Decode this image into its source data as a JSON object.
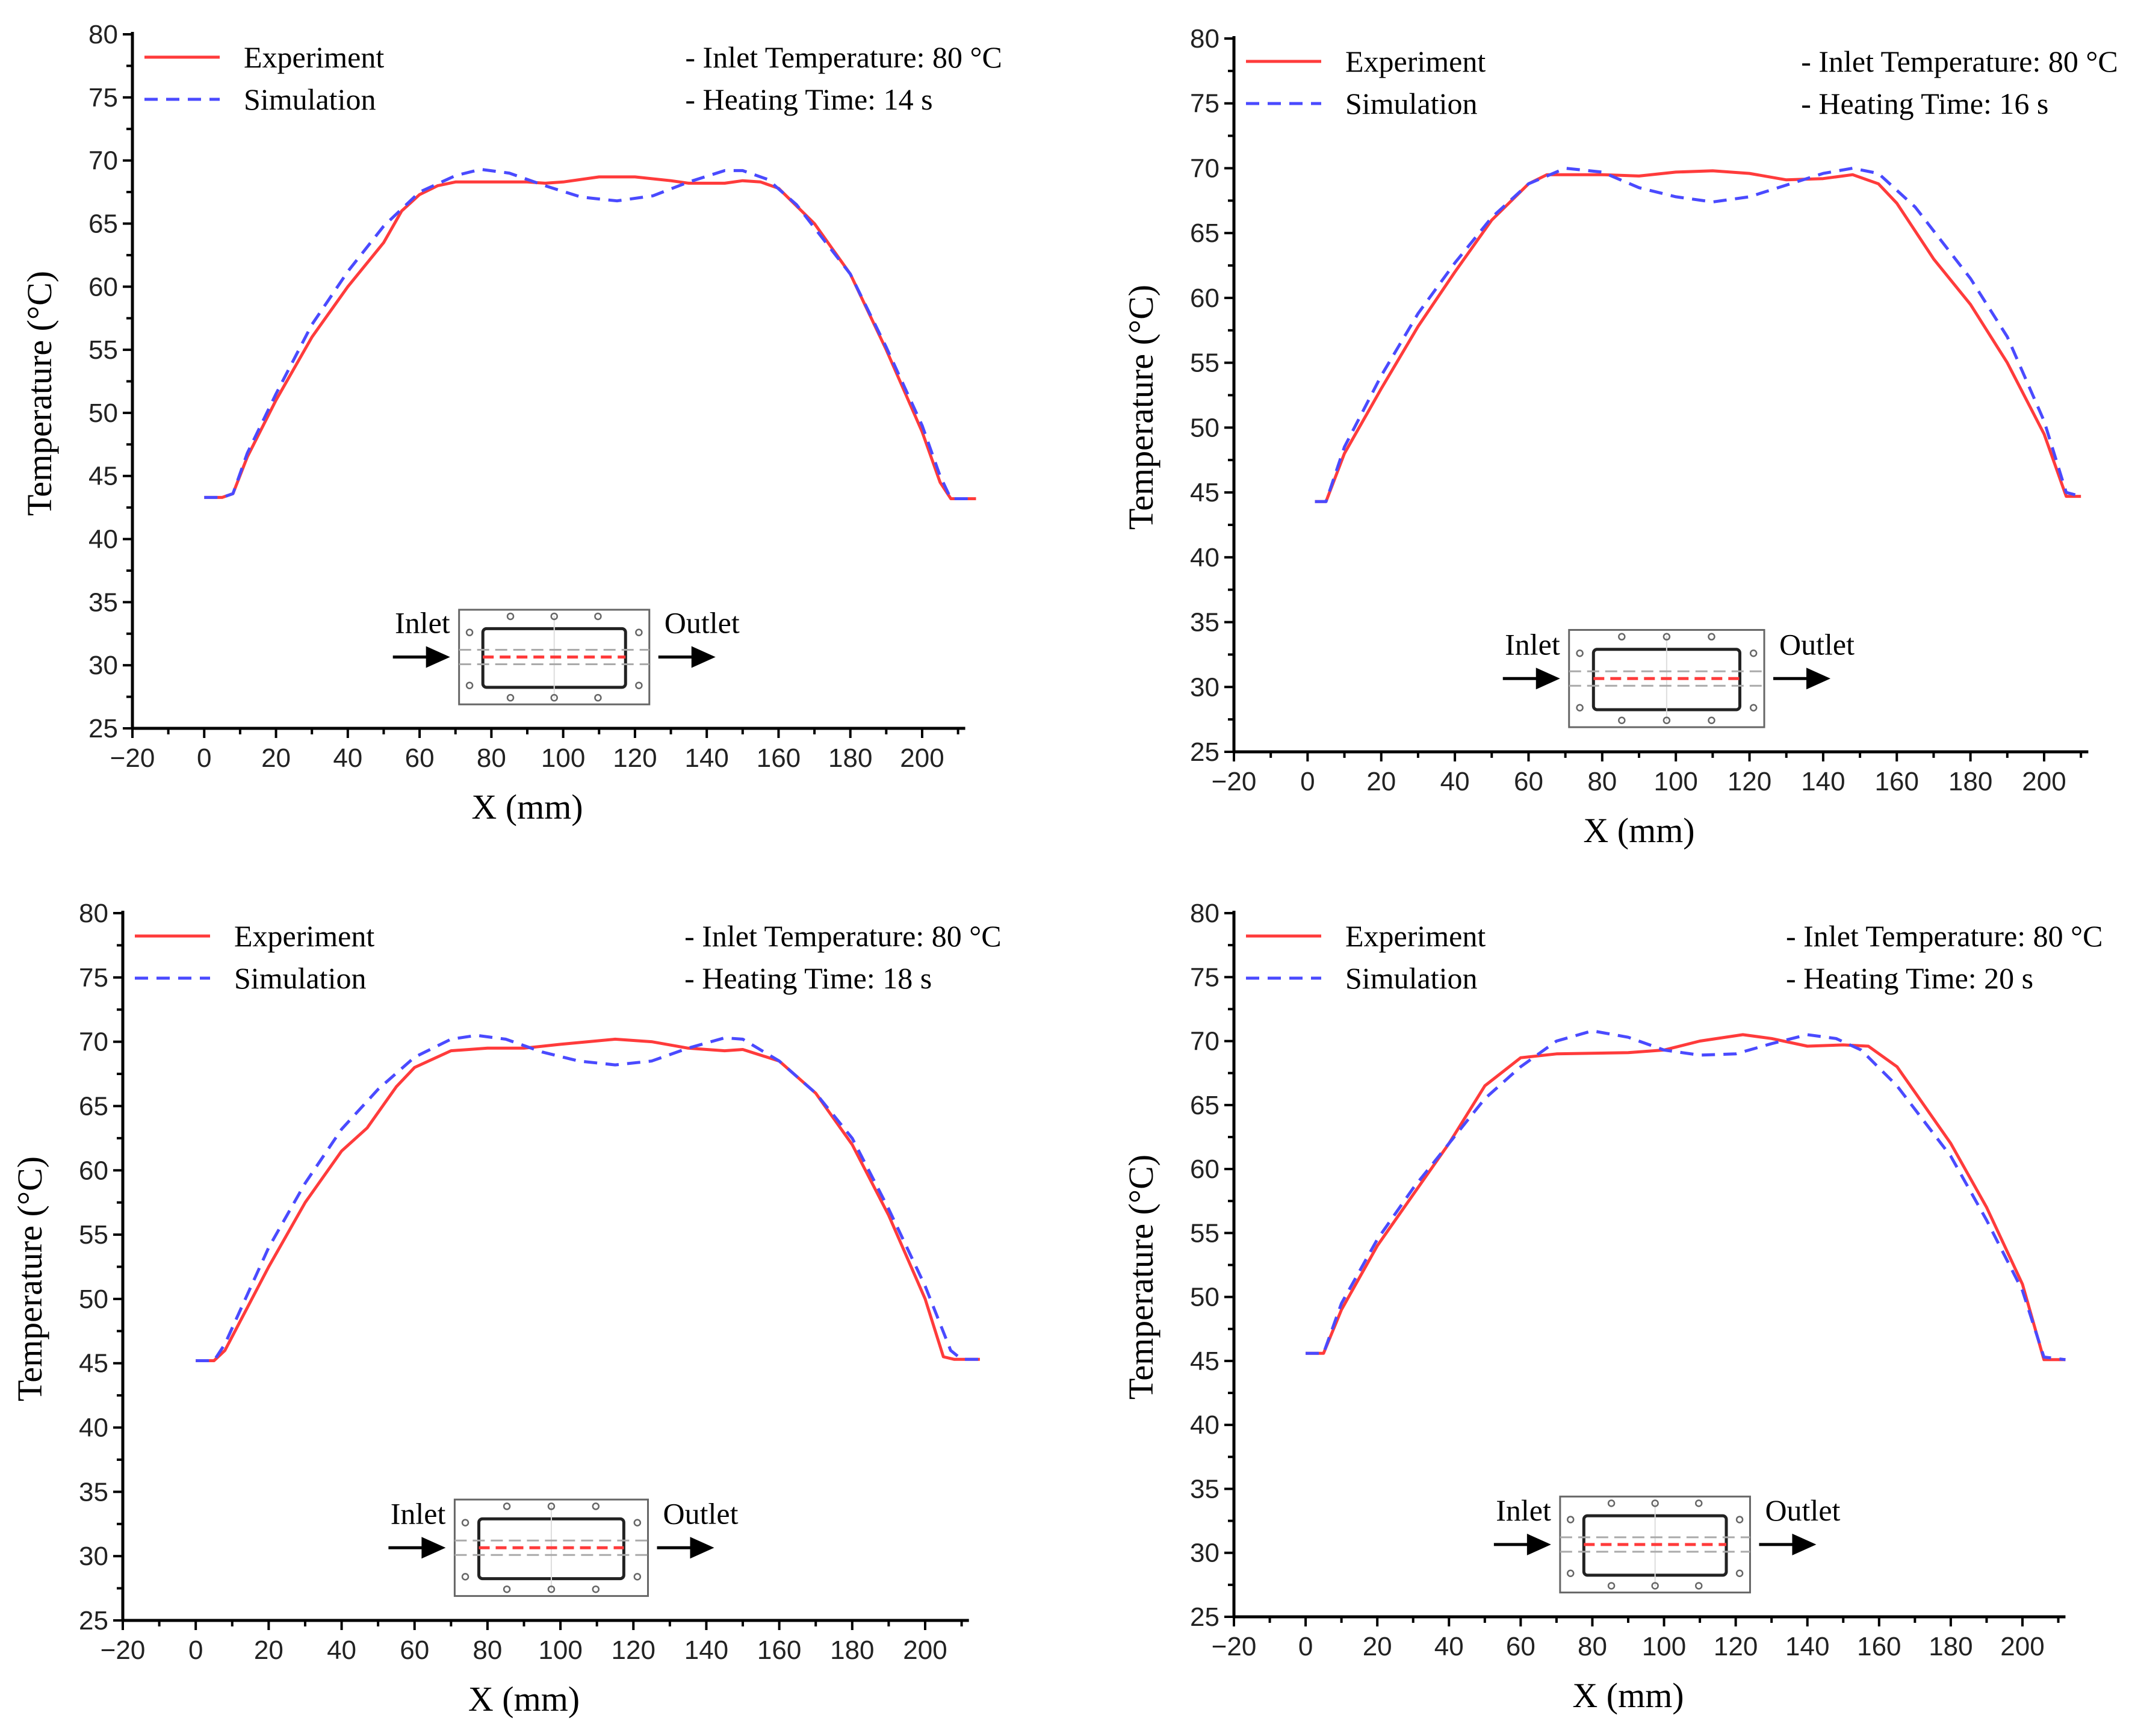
{
  "chart_data": [
    {
      "type": "line",
      "xlabel": "X (mm)",
      "ylabel": "Temperature (°C)",
      "xlim": [
        -20,
        212
      ],
      "ylim": [
        25,
        80
      ],
      "xticks": [
        -20,
        0,
        20,
        40,
        60,
        80,
        100,
        120,
        140,
        160,
        180,
        200
      ],
      "yticks": [
        25,
        30,
        35,
        40,
        45,
        50,
        55,
        60,
        65,
        70,
        75,
        80
      ],
      "legend": "top-left",
      "annotations": [
        "- Inlet Temperature: 80 °C",
        "- Heating Time: 14 s"
      ],
      "inset": {
        "inlet": "Inlet",
        "outlet": "Outlet"
      },
      "series": [
        {
          "name": "Experiment",
          "color": "#ff3b3b",
          "style": "solid",
          "points": [
            [
              0,
              43.3
            ],
            [
              5,
              43.3
            ],
            [
              8,
              43.6
            ],
            [
              12,
              46.5
            ],
            [
              20,
              51
            ],
            [
              30,
              56
            ],
            [
              40,
              60
            ],
            [
              50,
              63.5
            ],
            [
              55,
              66
            ],
            [
              60,
              67.3
            ],
            [
              65,
              68
            ],
            [
              70,
              68.3
            ],
            [
              80,
              68.3
            ],
            [
              90,
              68.3
            ],
            [
              95,
              68.2
            ],
            [
              100,
              68.3
            ],
            [
              110,
              68.7
            ],
            [
              120,
              68.7
            ],
            [
              130,
              68.4
            ],
            [
              135,
              68.2
            ],
            [
              145,
              68.2
            ],
            [
              150,
              68.4
            ],
            [
              155,
              68.3
            ],
            [
              160,
              67.8
            ],
            [
              170,
              65
            ],
            [
              180,
              61
            ],
            [
              190,
              55
            ],
            [
              200,
              48.5
            ],
            [
              205,
              44.5
            ],
            [
              208,
              43.2
            ],
            [
              215,
              43.2
            ]
          ]
        },
        {
          "name": "Simulation",
          "color": "#4a4aff",
          "style": "dashed",
          "points": [
            [
              0,
              43.3
            ],
            [
              5,
              43.3
            ],
            [
              8,
              43.6
            ],
            [
              12,
              46.8
            ],
            [
              20,
              51.5
            ],
            [
              30,
              57
            ],
            [
              40,
              61.2
            ],
            [
              50,
              64.8
            ],
            [
              60,
              67.5
            ],
            [
              70,
              68.8
            ],
            [
              77,
              69.3
            ],
            [
              85,
              69
            ],
            [
              95,
              68
            ],
            [
              105,
              67.1
            ],
            [
              115,
              66.8
            ],
            [
              125,
              67.2
            ],
            [
              135,
              68.3
            ],
            [
              145,
              69.2
            ],
            [
              150,
              69.2
            ],
            [
              157,
              68.5
            ],
            [
              165,
              66.5
            ],
            [
              180,
              61
            ],
            [
              190,
              55.2
            ],
            [
              200,
              49
            ],
            [
              205,
              45
            ],
            [
              208,
              43.2
            ],
            [
              215,
              43.2
            ]
          ]
        }
      ]
    },
    {
      "type": "line",
      "xlabel": "X (mm)",
      "ylabel": "Temperature (°C)",
      "xlim": [
        -20,
        212
      ],
      "ylim": [
        25,
        80
      ],
      "xticks": [
        -20,
        0,
        20,
        40,
        60,
        80,
        100,
        120,
        140,
        160,
        180,
        200
      ],
      "yticks": [
        25,
        30,
        35,
        40,
        45,
        50,
        55,
        60,
        65,
        70,
        75,
        80
      ],
      "legend": "top-left",
      "annotations": [
        "- Inlet Temperature: 80 °C",
        "- Heating Time: 16 s"
      ],
      "inset": {
        "inlet": "Inlet",
        "outlet": "Outlet"
      },
      "series": [
        {
          "name": "Experiment",
          "color": "#ff3b3b",
          "style": "solid",
          "points": [
            [
              2,
              44.3
            ],
            [
              5,
              44.3
            ],
            [
              10,
              48
            ],
            [
              20,
              53
            ],
            [
              30,
              57.8
            ],
            [
              40,
              62
            ],
            [
              50,
              66
            ],
            [
              60,
              68.8
            ],
            [
              65,
              69.5
            ],
            [
              80,
              69.5
            ],
            [
              90,
              69.4
            ],
            [
              100,
              69.7
            ],
            [
              110,
              69.8
            ],
            [
              120,
              69.6
            ],
            [
              130,
              69.1
            ],
            [
              140,
              69.2
            ],
            [
              148,
              69.5
            ],
            [
              155,
              68.8
            ],
            [
              160,
              67.3
            ],
            [
              170,
              63
            ],
            [
              180,
              59.5
            ],
            [
              190,
              55
            ],
            [
              200,
              49.5
            ],
            [
              206,
              44.7
            ],
            [
              210,
              44.7
            ]
          ]
        },
        {
          "name": "Simulation",
          "color": "#4a4aff",
          "style": "dashed",
          "points": [
            [
              2,
              44.3
            ],
            [
              5,
              44.3
            ],
            [
              10,
              48.5
            ],
            [
              20,
              54
            ],
            [
              30,
              58.8
            ],
            [
              40,
              62.7
            ],
            [
              50,
              66.2
            ],
            [
              60,
              68.8
            ],
            [
              70,
              70
            ],
            [
              80,
              69.7
            ],
            [
              90,
              68.5
            ],
            [
              100,
              67.8
            ],
            [
              110,
              67.4
            ],
            [
              120,
              67.8
            ],
            [
              130,
              68.7
            ],
            [
              140,
              69.6
            ],
            [
              148,
              70
            ],
            [
              155,
              69.6
            ],
            [
              165,
              67
            ],
            [
              180,
              61.5
            ],
            [
              190,
              57
            ],
            [
              200,
              50.5
            ],
            [
              206,
              45
            ],
            [
              210,
              44.7
            ]
          ]
        }
      ]
    },
    {
      "type": "line",
      "xlabel": "X (mm)",
      "ylabel": "Temperature (°C)",
      "xlim": [
        -20,
        212
      ],
      "ylim": [
        25,
        80
      ],
      "xticks": [
        -20,
        0,
        20,
        40,
        60,
        80,
        100,
        120,
        140,
        160,
        180,
        200
      ],
      "yticks": [
        25,
        30,
        35,
        40,
        45,
        50,
        55,
        60,
        65,
        70,
        75,
        80
      ],
      "legend": "top-left",
      "annotations": [
        "- Inlet Temperature: 80 °C",
        "- Heating Time: 18 s"
      ],
      "inset": {
        "inlet": "Inlet",
        "outlet": "Outlet"
      },
      "series": [
        {
          "name": "Experiment",
          "color": "#ff3b3b",
          "style": "solid",
          "points": [
            [
              0,
              45.2
            ],
            [
              5,
              45.2
            ],
            [
              8,
              46
            ],
            [
              20,
              52.5
            ],
            [
              30,
              57.5
            ],
            [
              40,
              61.5
            ],
            [
              47,
              63.3
            ],
            [
              55,
              66.5
            ],
            [
              60,
              68
            ],
            [
              70,
              69.3
            ],
            [
              80,
              69.5
            ],
            [
              90,
              69.5
            ],
            [
              100,
              69.8
            ],
            [
              115,
              70.2
            ],
            [
              125,
              70
            ],
            [
              135,
              69.5
            ],
            [
              145,
              69.3
            ],
            [
              150,
              69.4
            ],
            [
              160,
              68.5
            ],
            [
              170,
              66
            ],
            [
              180,
              62
            ],
            [
              190,
              56.5
            ],
            [
              200,
              50
            ],
            [
              205,
              45.5
            ],
            [
              208,
              45.3
            ],
            [
              215,
              45.3
            ]
          ]
        },
        {
          "name": "Simulation",
          "color": "#4a4aff",
          "style": "dashed",
          "points": [
            [
              0,
              45.2
            ],
            [
              5,
              45.2
            ],
            [
              8,
              46.5
            ],
            [
              20,
              54
            ],
            [
              30,
              59
            ],
            [
              40,
              63.2
            ],
            [
              50,
              66.3
            ],
            [
              60,
              68.8
            ],
            [
              70,
              70.2
            ],
            [
              77,
              70.5
            ],
            [
              85,
              70.2
            ],
            [
              95,
              69.2
            ],
            [
              105,
              68.5
            ],
            [
              115,
              68.2
            ],
            [
              125,
              68.5
            ],
            [
              135,
              69.5
            ],
            [
              145,
              70.3
            ],
            [
              150,
              70.2
            ],
            [
              160,
              68.5
            ],
            [
              170,
              66
            ],
            [
              180,
              62.5
            ],
            [
              190,
              57
            ],
            [
              200,
              51
            ],
            [
              207,
              46
            ],
            [
              210,
              45.3
            ],
            [
              215,
              45.3
            ]
          ]
        }
      ]
    },
    {
      "type": "line",
      "xlabel": "X (mm)",
      "ylabel": "Temperature (°C)",
      "xlim": [
        -20,
        212
      ],
      "ylim": [
        25,
        80
      ],
      "xticks": [
        -20,
        0,
        20,
        40,
        60,
        80,
        100,
        120,
        140,
        160,
        180,
        200
      ],
      "yticks": [
        25,
        30,
        35,
        40,
        45,
        50,
        55,
        60,
        65,
        70,
        75,
        80
      ],
      "legend": "top-left",
      "annotations": [
        "- Inlet Temperature: 80 °C",
        "- Heating Time: 20 s"
      ],
      "inset": {
        "inlet": "Inlet",
        "outlet": "Outlet"
      },
      "series": [
        {
          "name": "Experiment",
          "color": "#ff3b3b",
          "style": "solid",
          "points": [
            [
              0,
              45.6
            ],
            [
              5,
              45.6
            ],
            [
              10,
              49
            ],
            [
              20,
              54
            ],
            [
              30,
              58
            ],
            [
              40,
              62
            ],
            [
              50,
              66.5
            ],
            [
              60,
              68.7
            ],
            [
              70,
              69
            ],
            [
              90,
              69.1
            ],
            [
              100,
              69.3
            ],
            [
              110,
              70
            ],
            [
              122,
              70.5
            ],
            [
              130,
              70.2
            ],
            [
              140,
              69.6
            ],
            [
              150,
              69.7
            ],
            [
              157,
              69.6
            ],
            [
              165,
              68
            ],
            [
              170,
              66
            ],
            [
              180,
              62
            ],
            [
              190,
              57
            ],
            [
              200,
              51
            ],
            [
              206,
              45.1
            ],
            [
              212,
              45.1
            ]
          ]
        },
        {
          "name": "Simulation",
          "color": "#4a4aff",
          "style": "dashed",
          "points": [
            [
              0,
              45.6
            ],
            [
              5,
              45.6
            ],
            [
              10,
              49.5
            ],
            [
              20,
              54.5
            ],
            [
              30,
              58.5
            ],
            [
              40,
              62
            ],
            [
              50,
              65.5
            ],
            [
              60,
              68
            ],
            [
              70,
              70
            ],
            [
              80,
              70.8
            ],
            [
              90,
              70.3
            ],
            [
              100,
              69.3
            ],
            [
              110,
              68.9
            ],
            [
              120,
              69
            ],
            [
              130,
              69.8
            ],
            [
              140,
              70.5
            ],
            [
              148,
              70.2
            ],
            [
              155,
              69.3
            ],
            [
              165,
              66.5
            ],
            [
              180,
              61
            ],
            [
              190,
              56
            ],
            [
              200,
              50.5
            ],
            [
              206,
              45.3
            ],
            [
              212,
              45.1
            ]
          ]
        }
      ]
    }
  ]
}
